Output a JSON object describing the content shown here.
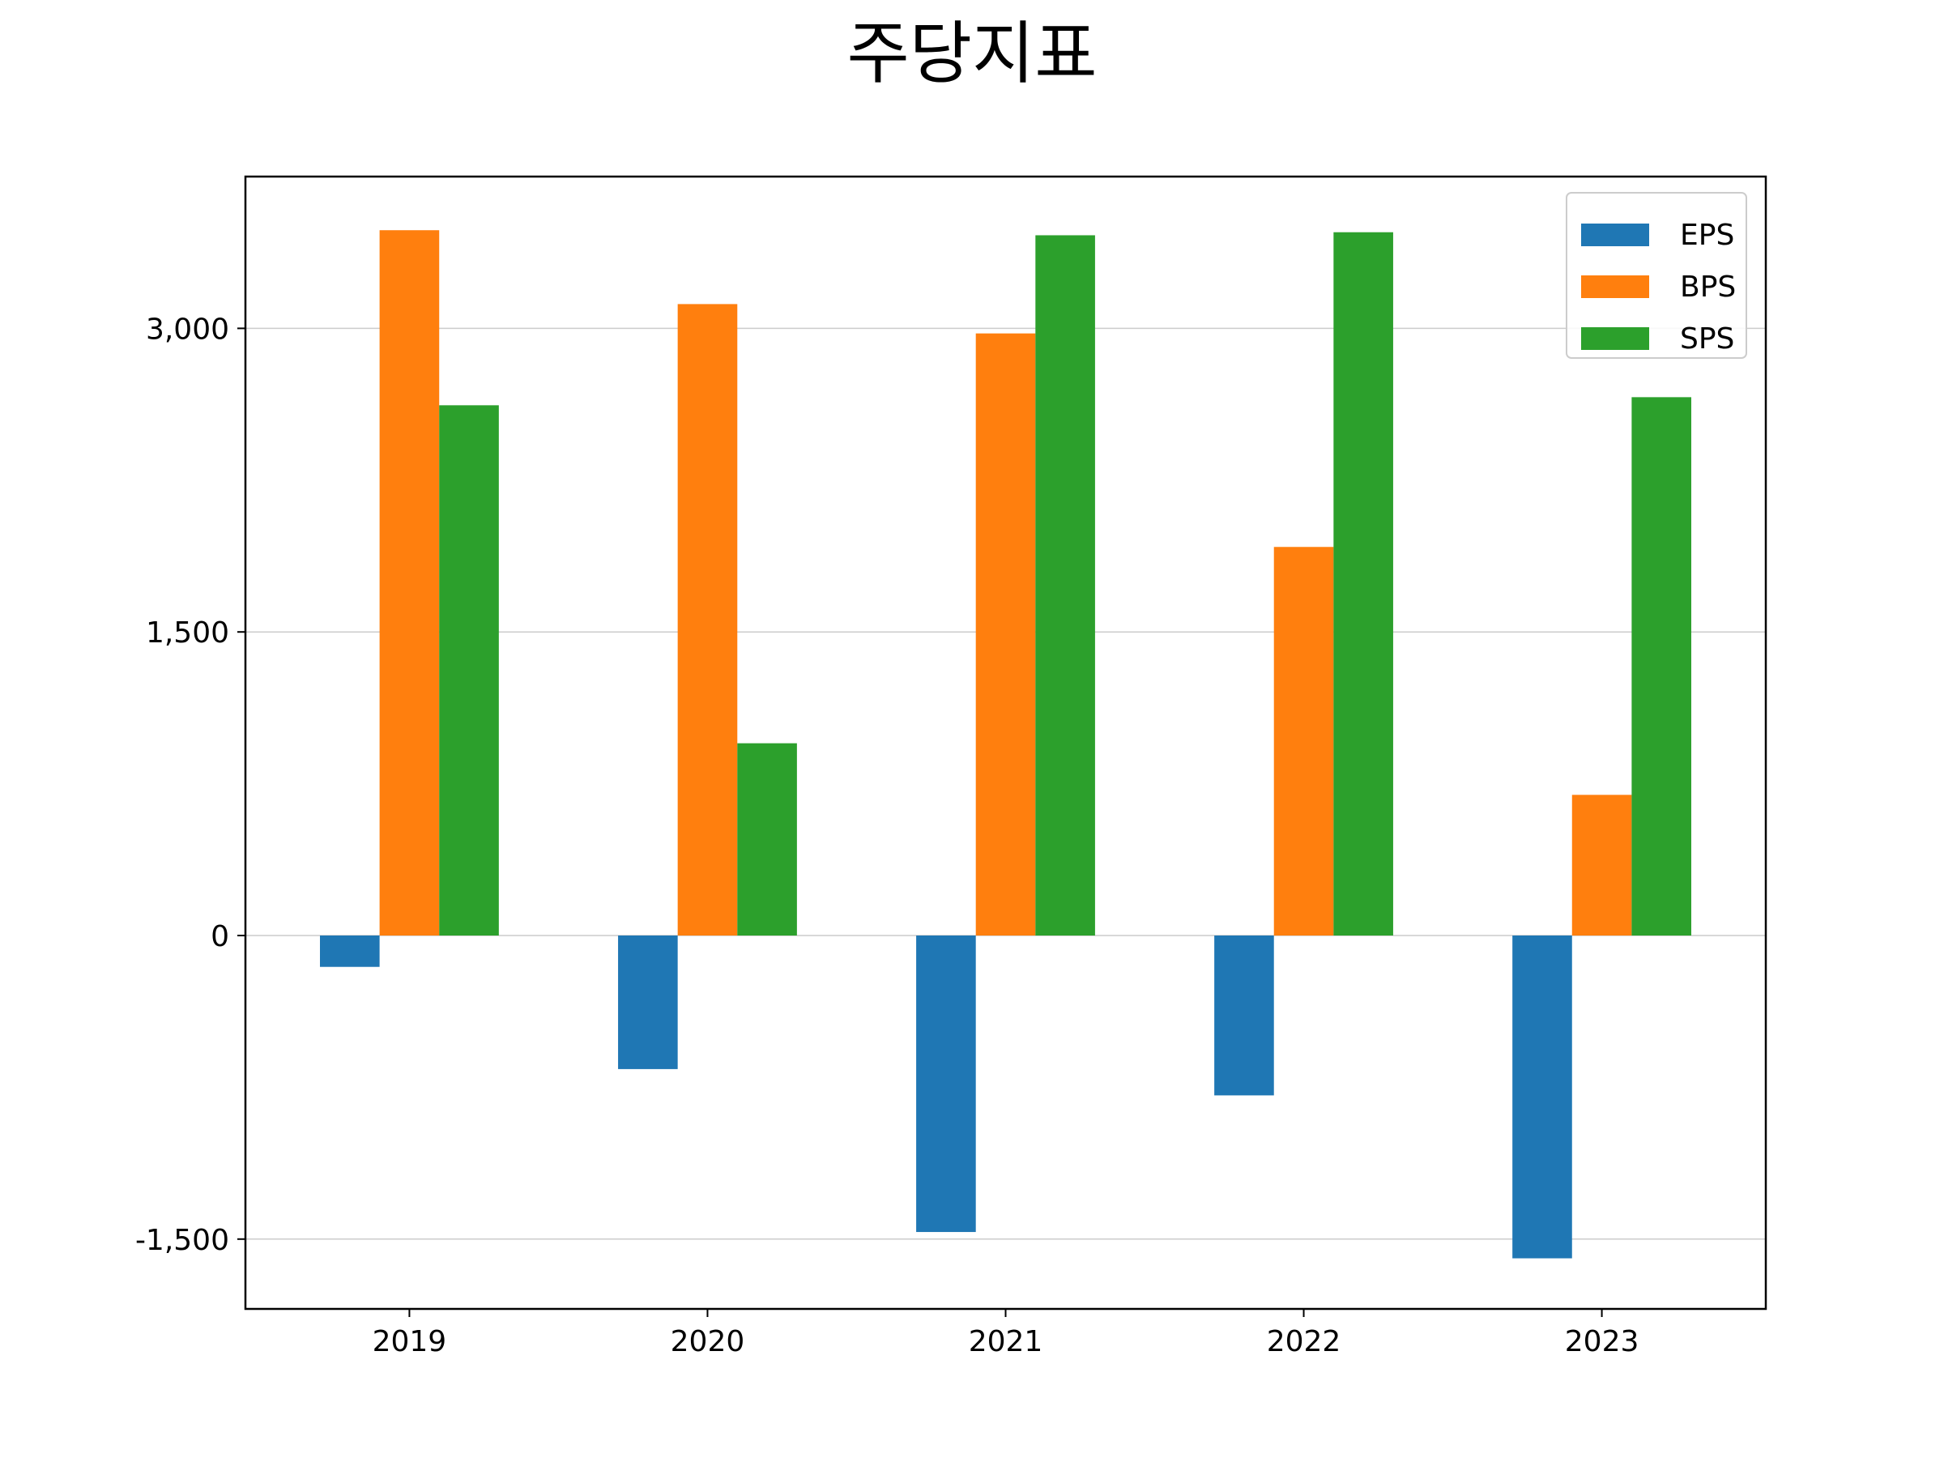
{
  "chart_data": {
    "type": "bar",
    "title": "주당지표",
    "xlabel": "",
    "ylabel": "",
    "categories": [
      "2019",
      "2020",
      "2021",
      "2022",
      "2023"
    ],
    "series": [
      {
        "name": "EPS",
        "color": "#1f77b4",
        "values": [
          -155,
          -660,
          -1465,
          -790,
          -1595
        ]
      },
      {
        "name": "BPS",
        "color": "#ff7f0e",
        "values": [
          3485,
          3120,
          2975,
          1920,
          695
        ]
      },
      {
        "name": "SPS",
        "color": "#2ca02c",
        "values": [
          2620,
          950,
          3460,
          3475,
          2660
        ]
      }
    ],
    "ylim": [
      -1845,
      3750
    ],
    "yticks": [
      -1500,
      0,
      1500,
      3000
    ],
    "ytick_labels": [
      "-1,500",
      "0",
      "1,500",
      "3,000"
    ],
    "grid": "y",
    "legend_position": "top-right"
  }
}
